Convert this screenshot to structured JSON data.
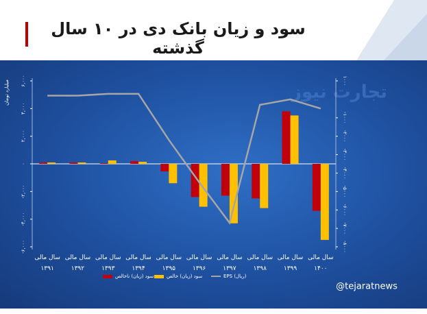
{
  "chart_data": {
    "type": "bar",
    "title": "سود و زیان بانک دی در ۱۰ سال گذشته",
    "y_label": "میلیارد تومان",
    "watermark": "تجارت نیوز",
    "source": "@tejaratnews",
    "categories": [
      "سال مالی ۱۳۹۱",
      "سال مالی ۱۳۹۲",
      "سال مالی ۱۳۹۳",
      "سال مالی ۱۳۹۴",
      "سال مالی ۱۳۹۵",
      "سال مالی ۱۳۹۶",
      "سال مالی ۱۳۹۷",
      "سال مالی ۱۳۹۸",
      "سال مالی ۱۳۹۹",
      "سال مالی ۱۴۰۰"
    ],
    "series": [
      {
        "name": "سود (زیان) ناخالص",
        "color": "#c0000b",
        "values": [
          100,
          100,
          50,
          200,
          -550,
          -2400,
          -2300,
          -2500,
          3800,
          -3400
        ]
      },
      {
        "name": "سود (زیان) خالص",
        "color": "#ffc000",
        "values": [
          100,
          100,
          250,
          150,
          -1400,
          -3100,
          -4300,
          -3200,
          3500,
          -5500
        ]
      },
      {
        "name": "EPS (ریال)",
        "color": "#a6a6a6",
        "type": "line",
        "axis": "y2",
        "values": [
          200,
          200,
          300,
          300,
          -2200,
          -4500,
          -6700,
          -300,
          0,
          -500
        ]
      }
    ],
    "ylim": [
      -6000,
      6000
    ],
    "yticks": [
      {
        "value": 6000,
        "label": "۶,۰۰۰"
      },
      {
        "value": 4000,
        "label": "۴,۰۰۰"
      },
      {
        "value": 2000,
        "label": "۲,۰۰۰"
      },
      {
        "value": 0,
        "label": "۰"
      },
      {
        "value": -2000,
        "label": "-۲,۰۰۰"
      },
      {
        "value": -4000,
        "label": "-۴,۰۰۰"
      },
      {
        "value": -6000,
        "label": "-۶,۰۰۰"
      }
    ],
    "y2lim": [
      -8000,
      1000
    ],
    "y2ticks": [
      {
        "value": 1000,
        "label": "۱۰۰۰"
      },
      {
        "value": -1000,
        "label": "-۱۰۰۰"
      },
      {
        "value": -2000,
        "label": "-۲۰۰۰"
      },
      {
        "value": -3000,
        "label": "-۳۰۰۰"
      },
      {
        "value": -4000,
        "label": "-۴۰۰۰"
      },
      {
        "value": -5000,
        "label": "-۵۰۰۰"
      },
      {
        "value": -6000,
        "label": "-۶۰۰۰"
      },
      {
        "value": -7000,
        "label": "-۷۰۰۰"
      },
      {
        "value": -8000,
        "label": "-۸۰۰۰"
      }
    ],
    "grid": false
  }
}
